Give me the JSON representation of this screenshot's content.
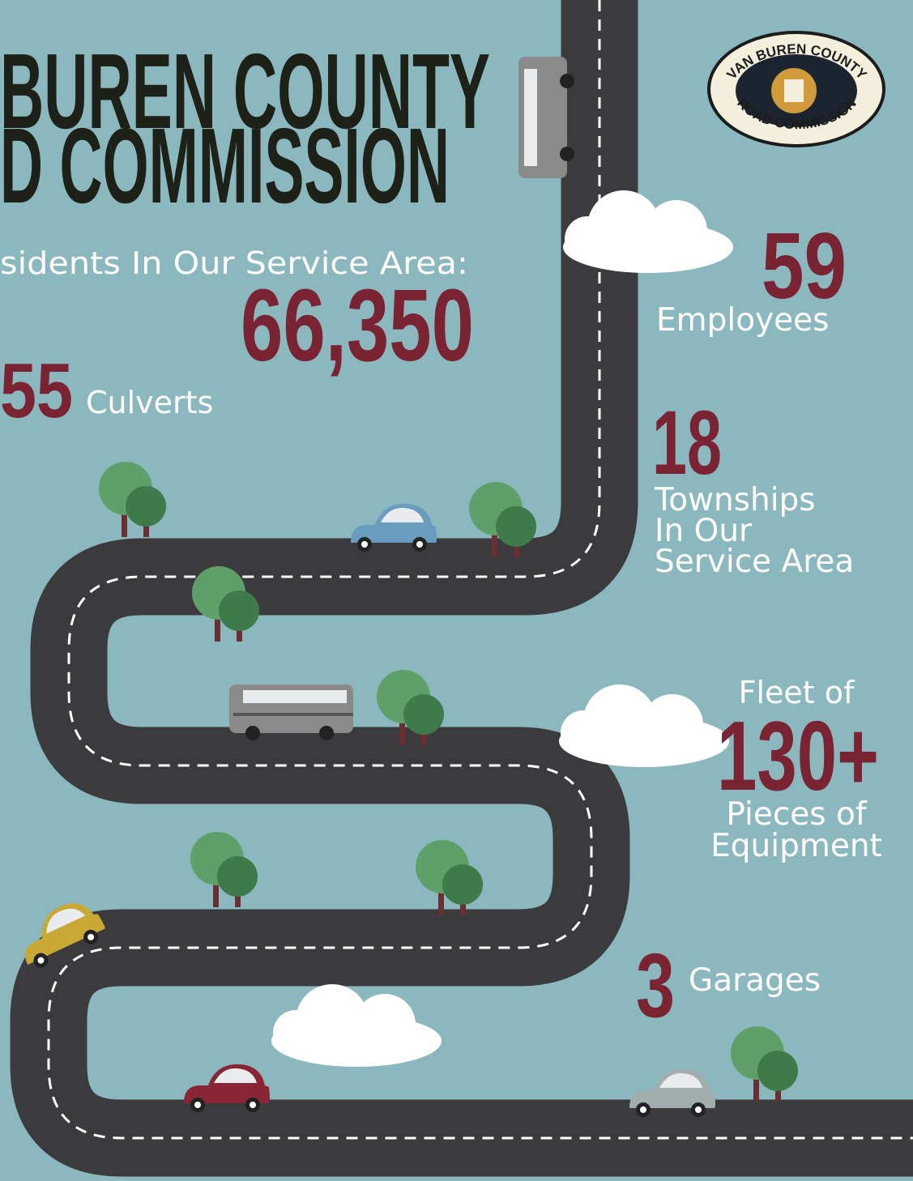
{
  "header": {
    "title_lines": [
      "BUREN COUNTY",
      "D COMMISSION"
    ]
  },
  "logo": {
    "top": "VAN BUREN COUNTY",
    "bottom": "ROAD COMMISSION"
  },
  "stats": {
    "residents": {
      "label": "sidents In Our Service Area:",
      "value": "66,350"
    },
    "culverts": {
      "value": "55",
      "label": "Culverts"
    },
    "employees": {
      "value": "59",
      "label": "Employees"
    },
    "townships": {
      "value": "18",
      "label_lines": [
        "Townships",
        "In Our",
        "Service Area"
      ]
    },
    "fleet": {
      "prefix": "Fleet of",
      "value": "130+",
      "label_lines": [
        "Pieces of",
        "Equipment"
      ]
    },
    "garages": {
      "value": "3",
      "label": "Garages"
    }
  }
}
